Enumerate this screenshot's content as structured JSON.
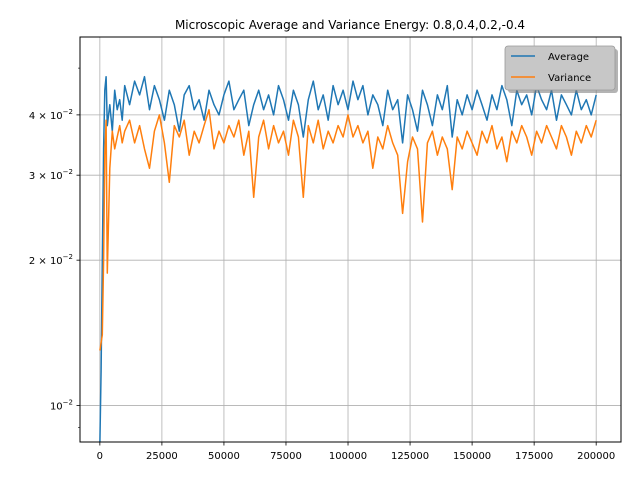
{
  "chart_data": {
    "type": "line",
    "title": "Microscopic Average and Variance Energy: 0.8,0.4,0.2,-0.4",
    "xlabel": "",
    "ylabel": "",
    "y_scale": "log",
    "grid": true,
    "xlim": [
      -8000,
      210000
    ],
    "ylim": [
      0.0084,
      0.058
    ],
    "x_ticks": [
      0,
      25000,
      50000,
      75000,
      100000,
      125000,
      150000,
      175000,
      200000
    ],
    "x_tick_labels": [
      "0",
      "25000",
      "50000",
      "75000",
      "100000",
      "125000",
      "150000",
      "175000",
      "200000"
    ],
    "y_ticks": [
      0.01,
      0.02,
      0.03,
      0.04
    ],
    "y_tick_labels": [
      {
        "base": "10",
        "exp": "−2",
        "prefix": ""
      },
      {
        "base": "10",
        "exp": "−2",
        "prefix": "2 × "
      },
      {
        "base": "10",
        "exp": "−2",
        "prefix": "3 × "
      },
      {
        "base": "10",
        "exp": "−2",
        "prefix": "4 × "
      }
    ],
    "legend": {
      "position": "top-right",
      "entries": [
        "Average",
        "Variance"
      ]
    },
    "series": [
      {
        "name": "Average",
        "color": "#1f77b4",
        "x": [
          0,
          500,
          1000,
          1500,
          2000,
          2500,
          3000,
          4000,
          5000,
          6000,
          7000,
          8000,
          9000,
          10000,
          12000,
          14000,
          16000,
          18000,
          20000,
          22000,
          24000,
          26000,
          28000,
          30000,
          32000,
          34000,
          36000,
          38000,
          40000,
          42000,
          44000,
          46000,
          48000,
          50000,
          52000,
          54000,
          56000,
          58000,
          60000,
          62000,
          64000,
          66000,
          68000,
          70000,
          72000,
          74000,
          76000,
          78000,
          80000,
          82000,
          84000,
          86000,
          88000,
          90000,
          92000,
          94000,
          96000,
          98000,
          100000,
          102000,
          104000,
          106000,
          108000,
          110000,
          112000,
          114000,
          116000,
          118000,
          120000,
          122000,
          124000,
          126000,
          128000,
          130000,
          132000,
          134000,
          136000,
          138000,
          140000,
          142000,
          144000,
          146000,
          148000,
          150000,
          152000,
          154000,
          156000,
          158000,
          160000,
          162000,
          164000,
          166000,
          168000,
          170000,
          172000,
          174000,
          176000,
          178000,
          180000,
          182000,
          184000,
          186000,
          188000,
          190000,
          192000,
          194000,
          196000,
          198000,
          200000
        ],
        "y": [
          0.0084,
          0.0118,
          0.02,
          0.034,
          0.045,
          0.048,
          0.038,
          0.042,
          0.037,
          0.045,
          0.041,
          0.043,
          0.039,
          0.046,
          0.042,
          0.047,
          0.044,
          0.048,
          0.041,
          0.046,
          0.043,
          0.039,
          0.045,
          0.042,
          0.037,
          0.044,
          0.046,
          0.041,
          0.043,
          0.039,
          0.045,
          0.042,
          0.04,
          0.044,
          0.047,
          0.041,
          0.043,
          0.045,
          0.038,
          0.042,
          0.045,
          0.041,
          0.044,
          0.04,
          0.046,
          0.043,
          0.039,
          0.045,
          0.042,
          0.036,
          0.043,
          0.047,
          0.041,
          0.044,
          0.039,
          0.046,
          0.042,
          0.045,
          0.041,
          0.047,
          0.043,
          0.046,
          0.04,
          0.044,
          0.042,
          0.038,
          0.045,
          0.041,
          0.043,
          0.035,
          0.044,
          0.041,
          0.037,
          0.045,
          0.042,
          0.038,
          0.044,
          0.041,
          0.046,
          0.036,
          0.043,
          0.04,
          0.044,
          0.041,
          0.045,
          0.042,
          0.039,
          0.044,
          0.041,
          0.046,
          0.043,
          0.038,
          0.045,
          0.042,
          0.044,
          0.04,
          0.046,
          0.043,
          0.041,
          0.045,
          0.039,
          0.044,
          0.042,
          0.04,
          0.045,
          0.041,
          0.043,
          0.04,
          0.044
        ]
      },
      {
        "name": "Variance",
        "color": "#ff7f0e",
        "x": [
          0,
          500,
          1000,
          1500,
          2000,
          2500,
          3000,
          4000,
          5000,
          6000,
          7000,
          8000,
          9000,
          10000,
          12000,
          14000,
          16000,
          18000,
          20000,
          22000,
          24000,
          26000,
          28000,
          30000,
          32000,
          34000,
          36000,
          38000,
          40000,
          42000,
          44000,
          46000,
          48000,
          50000,
          52000,
          54000,
          56000,
          58000,
          60000,
          62000,
          64000,
          66000,
          68000,
          70000,
          72000,
          74000,
          76000,
          78000,
          80000,
          82000,
          84000,
          86000,
          88000,
          90000,
          92000,
          94000,
          96000,
          98000,
          100000,
          102000,
          104000,
          106000,
          108000,
          110000,
          112000,
          114000,
          116000,
          118000,
          120000,
          122000,
          124000,
          126000,
          128000,
          130000,
          132000,
          134000,
          136000,
          138000,
          140000,
          142000,
          144000,
          146000,
          148000,
          150000,
          152000,
          154000,
          156000,
          158000,
          160000,
          162000,
          164000,
          166000,
          168000,
          170000,
          172000,
          174000,
          176000,
          178000,
          180000,
          182000,
          184000,
          186000,
          188000,
          190000,
          192000,
          194000,
          196000,
          198000,
          200000
        ],
        "y": [
          0.013,
          0.0135,
          0.014,
          0.02,
          0.033,
          0.039,
          0.0188,
          0.031,
          0.037,
          0.034,
          0.036,
          0.038,
          0.035,
          0.037,
          0.039,
          0.035,
          0.038,
          0.034,
          0.031,
          0.037,
          0.04,
          0.035,
          0.029,
          0.038,
          0.036,
          0.039,
          0.033,
          0.037,
          0.035,
          0.038,
          0.041,
          0.034,
          0.037,
          0.035,
          0.038,
          0.036,
          0.039,
          0.033,
          0.037,
          0.027,
          0.036,
          0.039,
          0.034,
          0.038,
          0.035,
          0.037,
          0.033,
          0.039,
          0.036,
          0.027,
          0.038,
          0.035,
          0.039,
          0.034,
          0.037,
          0.035,
          0.038,
          0.036,
          0.04,
          0.036,
          0.038,
          0.035,
          0.037,
          0.031,
          0.036,
          0.034,
          0.038,
          0.035,
          0.033,
          0.025,
          0.032,
          0.036,
          0.034,
          0.024,
          0.035,
          0.037,
          0.033,
          0.036,
          0.034,
          0.028,
          0.036,
          0.034,
          0.037,
          0.035,
          0.033,
          0.037,
          0.035,
          0.038,
          0.034,
          0.036,
          0.032,
          0.037,
          0.035,
          0.038,
          0.036,
          0.033,
          0.037,
          0.035,
          0.038,
          0.036,
          0.034,
          0.038,
          0.036,
          0.033,
          0.037,
          0.035,
          0.038,
          0.036,
          0.039
        ]
      }
    ]
  }
}
